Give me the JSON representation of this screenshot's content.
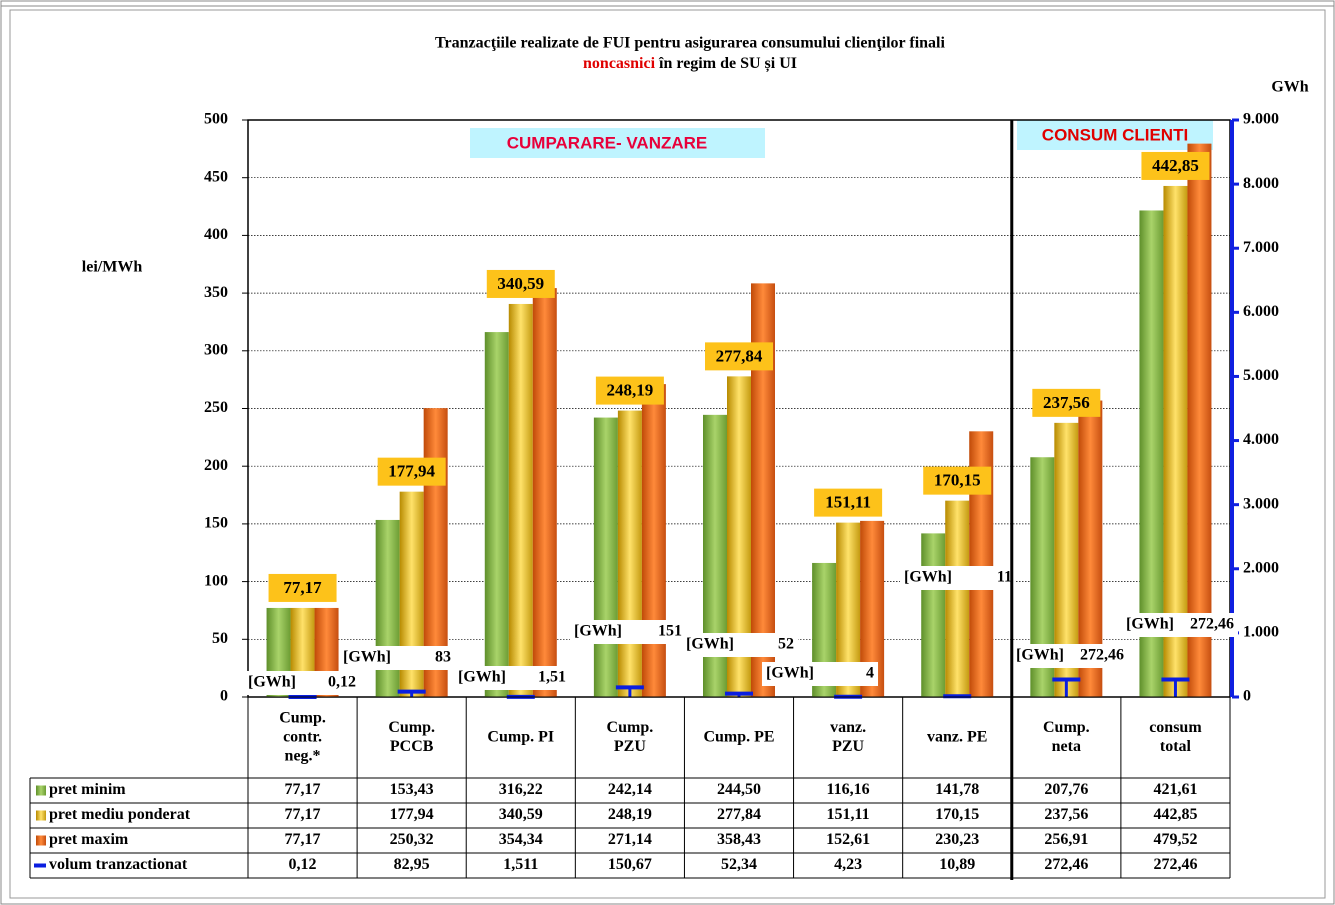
{
  "chart_data": {
    "type": "bar",
    "title": "Tranzacţiile realizate de FUI pentru asigurarea consumului clienţilor finali",
    "subtitle_highlight": "noncasnici",
    "subtitle": "în regim de SU și UI",
    "y_label": "lei/MWh",
    "y2_label": "GWh",
    "annotations": [
      "CUMPARARE- VANZARE",
      "CONSUM CLIENTI"
    ],
    "volume_unit_label": "[GWh]",
    "categories": [
      "Cump. contr. neg.*",
      "Cump. PCCB",
      "Cump. PI",
      "Cump. PZU",
      "Cump. PE",
      "vanz. PZU",
      "vanz. PE",
      "Cump. neta",
      "consum total"
    ],
    "ylim": [
      0,
      500
    ],
    "yticks": [
      0,
      50,
      100,
      150,
      200,
      250,
      300,
      350,
      400,
      450,
      500
    ],
    "y2lim": [
      0,
      9000
    ],
    "y2ticks": [
      0,
      {
        "value": 1000,
        "label": "1.000"
      },
      {
        "value": 2000,
        "label": "2.000"
      },
      {
        "value": 3000,
        "label": "3.000"
      },
      {
        "value": 4000,
        "label": "4.000"
      },
      {
        "value": 5000,
        "label": "5.000"
      },
      {
        "value": 6000,
        "label": "6.000"
      },
      {
        "value": 7000,
        "label": "7.000"
      },
      {
        "value": 8000,
        "label": "8.000"
      },
      {
        "value": 9000,
        "label": "9.000"
      }
    ],
    "grid": true,
    "series": [
      {
        "name": "pret minim",
        "color": "#8dbb4a",
        "values": [
          77.17,
          153.43,
          316.22,
          242.14,
          244.5,
          116.16,
          141.78,
          207.76,
          421.61
        ],
        "table_labels": [
          "77,17",
          "153,43",
          "316,22",
          "242,14",
          "244,50",
          "116,16",
          "141,78",
          "207,76",
          "421,61"
        ]
      },
      {
        "name": "pret mediu ponderat",
        "color": "#e3b417",
        "values": [
          77.17,
          177.94,
          340.59,
          248.19,
          277.84,
          151.11,
          170.15,
          237.56,
          442.85
        ],
        "value_labels": [
          "77,17",
          "177,94",
          "340,59",
          "248,19",
          "277,84",
          "151,11",
          "170,15",
          "237,56",
          "442,85"
        ],
        "table_labels": [
          "77,17",
          "177,94",
          "340,59",
          "248,19",
          "277,84",
          "151,11",
          "170,15",
          "237,56",
          "442,85"
        ]
      },
      {
        "name": "pret maxim",
        "color": "#e8641a",
        "values": [
          77.17,
          250.32,
          354.34,
          271.14,
          358.43,
          152.61,
          230.23,
          256.91,
          479.52
        ],
        "table_labels": [
          "77,17",
          "250,32",
          "354,34",
          "271,14",
          "358,43",
          "152,61",
          "230,23",
          "256,91",
          "479,52"
        ]
      },
      {
        "name": "volum tranzactionat",
        "color": "#0a1ee0",
        "axis": "y2",
        "values": [
          0.12,
          82.95,
          1.511,
          150.67,
          52.34,
          4.23,
          10.89,
          272.46,
          272.46
        ],
        "value_labels": [
          "0,12",
          "83",
          "1,51",
          "151",
          "52",
          "4",
          "11",
          "272,46",
          "272,46"
        ],
        "table_labels": [
          "0,12",
          "82,95",
          "1,511",
          "150,67",
          "52,34",
          "4,23",
          "10,89",
          "272,46",
          "272,46"
        ]
      }
    ]
  }
}
